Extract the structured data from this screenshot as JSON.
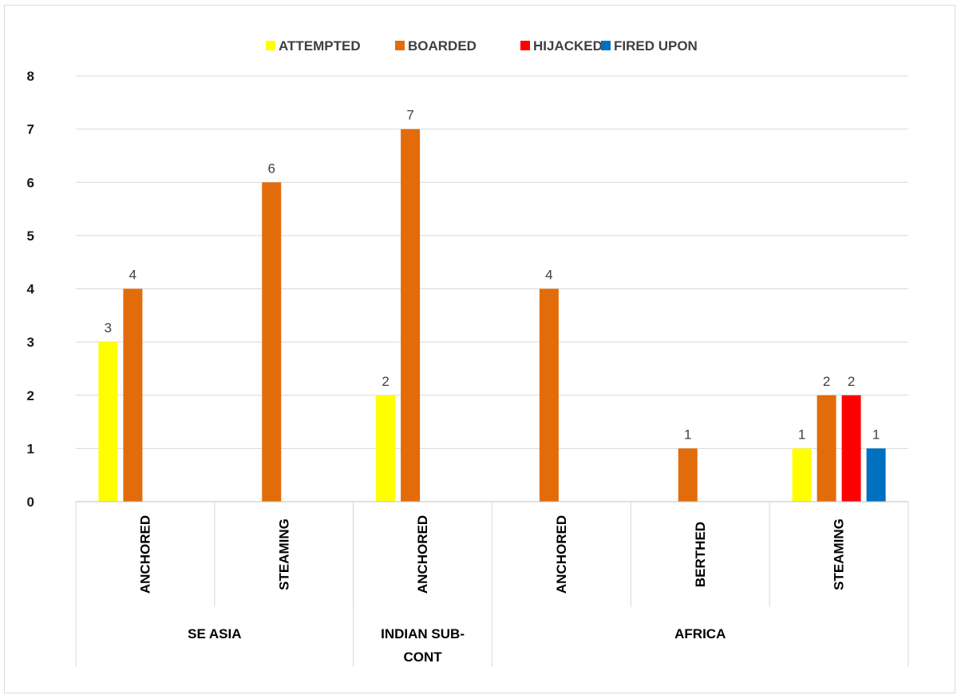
{
  "chart_data": {
    "type": "bar",
    "title": "",
    "xlabel": "",
    "ylabel": "",
    "ylim": [
      0,
      8
    ],
    "yticks": [
      "0",
      "1",
      "2",
      "3",
      "4",
      "5",
      "6",
      "7",
      "8"
    ],
    "grid": true,
    "legend_position": "top",
    "categories": [
      "ANCHORED",
      "STEAMING",
      "ANCHORED",
      "ANCHORED",
      "BERTHED",
      "STEAMING"
    ],
    "groups": [
      {
        "label": "SE ASIA",
        "span": 2
      },
      {
        "label": "INDIAN SUB-",
        "label2": "CONT",
        "span": 1
      },
      {
        "label": "AFRICA",
        "span": 3
      }
    ],
    "series": [
      {
        "name": "ATTEMPTED",
        "color": "#ffff00",
        "values": [
          3,
          null,
          2,
          null,
          null,
          1
        ]
      },
      {
        "name": "BOARDED",
        "color": "#e36c0a",
        "values": [
          4,
          6,
          7,
          4,
          1,
          2
        ]
      },
      {
        "name": "HIJACKED",
        "color": "#ff0000",
        "values": [
          null,
          null,
          null,
          null,
          null,
          2
        ]
      },
      {
        "name": "FIRED UPON",
        "color": "#0070c0",
        "values": [
          null,
          null,
          null,
          null,
          null,
          1
        ]
      }
    ]
  }
}
